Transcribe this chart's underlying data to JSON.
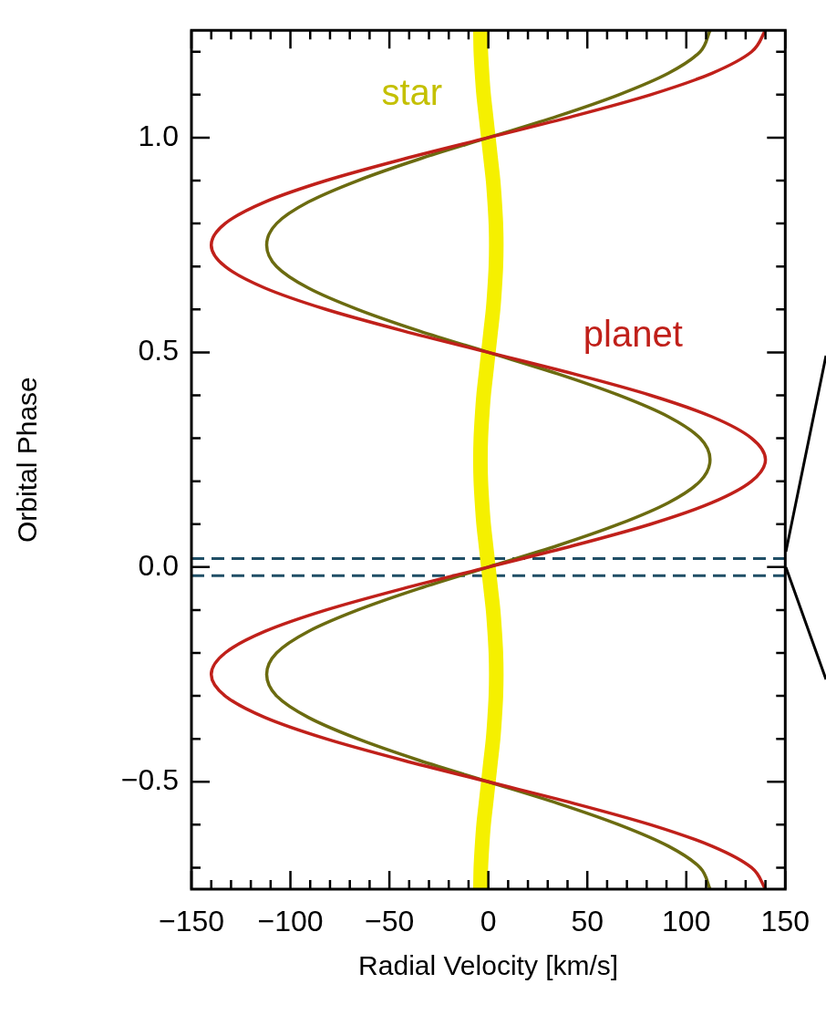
{
  "chart_data": {
    "type": "line",
    "xlabel": "Radial Velocity [km/s]",
    "ylabel": "Orbital Phase",
    "xlim": [
      -150,
      150
    ],
    "ylim": [
      -0.75,
      1.25
    ],
    "xticks": [
      {
        "value": -150,
        "label": "−150"
      },
      {
        "value": -140,
        "label": null
      },
      {
        "value": -130,
        "label": null
      },
      {
        "value": -120,
        "label": null
      },
      {
        "value": -110,
        "label": null
      },
      {
        "value": -100,
        "label": "−100"
      },
      {
        "value": -90,
        "label": null
      },
      {
        "value": -80,
        "label": null
      },
      {
        "value": -70,
        "label": null
      },
      {
        "value": -60,
        "label": null
      },
      {
        "value": -50,
        "label": "−50"
      },
      {
        "value": -40,
        "label": null
      },
      {
        "value": -30,
        "label": null
      },
      {
        "value": -20,
        "label": null
      },
      {
        "value": -10,
        "label": null
      },
      0,
      {
        "value": 10,
        "label": null
      },
      {
        "value": 20,
        "label": null
      },
      {
        "value": 30,
        "label": null
      },
      {
        "value": 40,
        "label": null
      },
      50,
      {
        "value": 60,
        "label": null
      },
      {
        "value": 70,
        "label": null
      },
      {
        "value": 80,
        "label": null
      },
      {
        "value": 90,
        "label": null
      },
      100,
      {
        "value": 110,
        "label": null
      },
      {
        "value": 120,
        "label": null
      },
      {
        "value": 130,
        "label": null
      },
      {
        "value": 140,
        "label": null
      },
      150
    ],
    "yticks": [
      {
        "value": -0.7,
        "label": null
      },
      {
        "value": -0.6,
        "label": null
      },
      {
        "value": -0.5,
        "label": "−0.5"
      },
      {
        "value": -0.4,
        "label": null
      },
      {
        "value": -0.3,
        "label": null
      },
      {
        "value": -0.2,
        "label": null
      },
      {
        "value": -0.1,
        "label": null
      },
      {
        "value": 0,
        "label": "0.0"
      },
      {
        "value": 0.1,
        "label": null
      },
      {
        "value": 0.2,
        "label": null
      },
      {
        "value": 0.3,
        "label": null
      },
      {
        "value": 0.4,
        "label": null
      },
      {
        "value": 0.5,
        "label": "0.5"
      },
      {
        "value": 0.6,
        "label": null
      },
      {
        "value": 0.7,
        "label": null
      },
      {
        "value": 0.8,
        "label": null
      },
      {
        "value": 0.9,
        "label": null
      },
      {
        "value": 1.0,
        "label": "1.0"
      },
      {
        "value": 1.1,
        "label": null
      },
      {
        "value": 1.2,
        "label": null
      }
    ],
    "grid": false,
    "legend": false,
    "marker": "none",
    "line_style": "solid",
    "series": [
      {
        "name": "star",
        "color": "#f5f000",
        "x": [
          -4,
          -3.8,
          -3.2,
          -2.4,
          -1.2,
          0,
          1.2,
          2.4,
          3.2,
          3.8,
          4,
          3.8,
          3.2,
          2.4,
          1.2,
          0,
          -1.2,
          -2.4,
          -3.2,
          -3.8,
          -4,
          -3.8,
          -3.2,
          -2.4,
          -1.2,
          0,
          1.2,
          2.4,
          3.2,
          3.8,
          4,
          3.8,
          3.2,
          2.4,
          1.2,
          0,
          -1.2,
          -2.4,
          -3.2,
          -3.8,
          -4
        ],
        "values": [
          -0.75,
          -0.7,
          -0.65,
          -0.6,
          -0.55,
          -0.5,
          -0.45,
          -0.4,
          -0.35,
          -0.3,
          -0.25,
          -0.2,
          -0.15,
          -0.1,
          -0.05,
          0,
          0.05,
          0.1,
          0.15,
          0.2,
          0.25,
          0.3,
          0.35,
          0.4,
          0.45,
          0.5,
          0.55,
          0.6,
          0.65,
          0.7,
          0.75,
          0.8,
          0.85,
          0.9,
          0.95,
          1.0,
          1.05,
          1.1,
          1.15,
          1.2,
          1.25
        ]
      },
      {
        "color": "#6b6b10",
        "x": [
          112,
          107,
          91,
          66,
          35,
          0,
          -35,
          -66,
          -91,
          -107,
          -112,
          -107,
          -91,
          -66,
          -35,
          0,
          35,
          66,
          91,
          107,
          112,
          107,
          91,
          66,
          35,
          0,
          -35,
          -66,
          -91,
          -107,
          -112,
          -107,
          -91,
          -66,
          -35,
          0,
          35,
          66,
          91,
          107,
          112
        ],
        "values": [
          -0.75,
          -0.7,
          -0.65,
          -0.6,
          -0.55,
          -0.5,
          -0.45,
          -0.4,
          -0.35,
          -0.3,
          -0.25,
          -0.2,
          -0.15,
          -0.1,
          -0.05,
          0,
          0.05,
          0.1,
          0.15,
          0.2,
          0.25,
          0.3,
          0.35,
          0.4,
          0.45,
          0.5,
          0.55,
          0.6,
          0.65,
          0.7,
          0.75,
          0.8,
          0.85,
          0.9,
          0.95,
          1.0,
          1.05,
          1.1,
          1.15,
          1.2,
          1.25
        ]
      },
      {
        "name": "planet",
        "color": "#c0201a",
        "x": [
          140,
          133,
          113,
          82,
          43,
          0,
          -43,
          -82,
          -113,
          -133,
          -140,
          -133,
          -113,
          -82,
          -43,
          0,
          43,
          82,
          113,
          133,
          140,
          133,
          113,
          82,
          43,
          0,
          -43,
          -82,
          -113,
          -133,
          -140,
          -133,
          -113,
          -82,
          -43,
          0,
          43,
          82,
          113,
          133,
          140
        ],
        "values": [
          -0.75,
          -0.7,
          -0.65,
          -0.6,
          -0.55,
          -0.5,
          -0.45,
          -0.4,
          -0.35,
          -0.3,
          -0.25,
          -0.2,
          -0.15,
          -0.1,
          -0.05,
          0,
          0.05,
          0.1,
          0.15,
          0.2,
          0.25,
          0.3,
          0.35,
          0.4,
          0.45,
          0.5,
          0.55,
          0.6,
          0.65,
          0.7,
          0.75,
          0.8,
          0.85,
          0.9,
          0.95,
          1.0,
          1.05,
          1.1,
          1.15,
          1.2,
          1.25
        ]
      }
    ],
    "ref_lines": [
      {
        "axis": "y",
        "value": 0.02,
        "color": "#1f4e66",
        "line_style": "dashed"
      },
      {
        "axis": "y",
        "value": -0.02,
        "color": "#1f4e66",
        "line_style": "dashed"
      }
    ]
  }
}
